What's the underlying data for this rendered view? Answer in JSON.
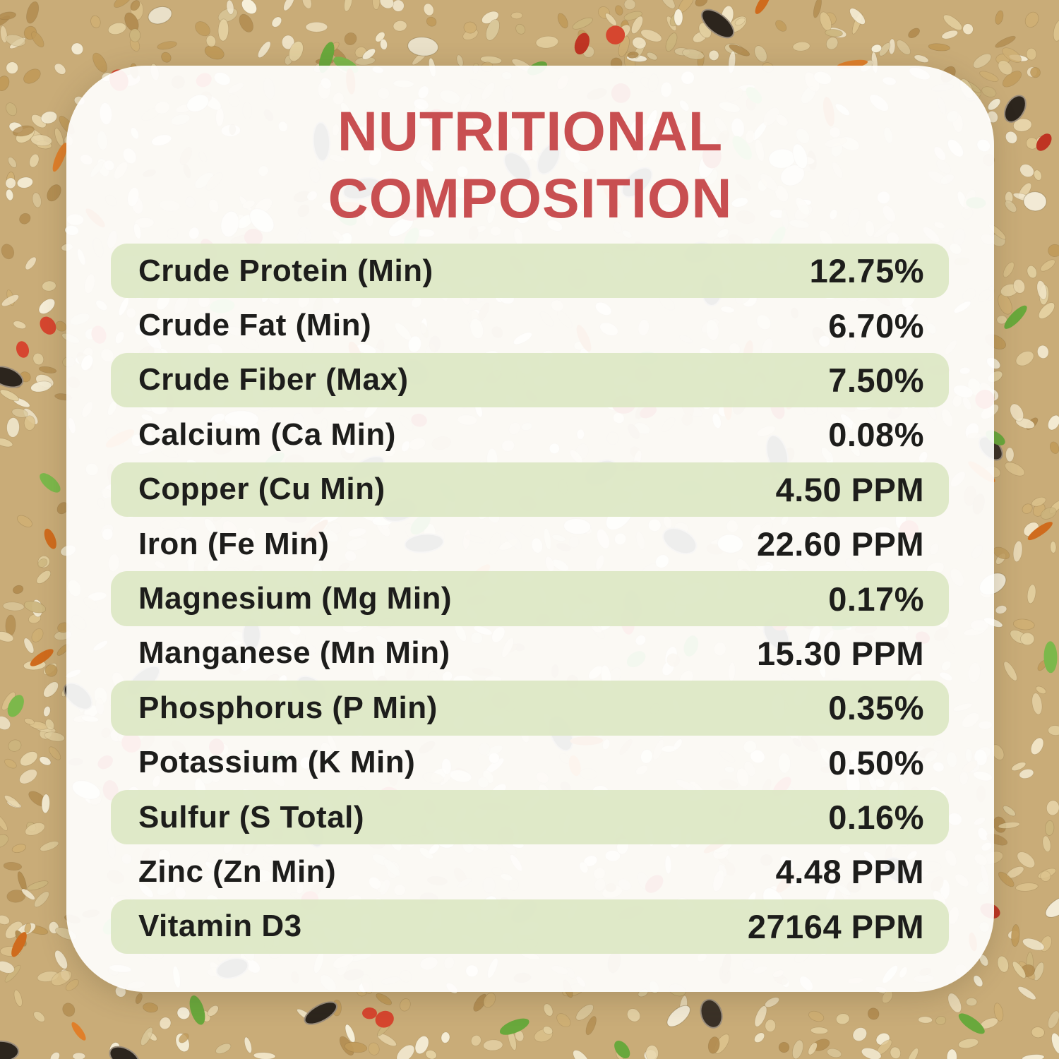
{
  "title": {
    "line1": "NUTRITIONAL",
    "line2": "COMPOSITION"
  },
  "colors": {
    "title_red": "#c84f51",
    "row_highlight_green": "rgba(220,231,195,0.9)",
    "text_dark": "#1d1d1b",
    "card_background": "rgba(255,255,255,0.92)"
  },
  "table": {
    "rows": [
      {
        "label": "Crude Protein (Min)",
        "value": "12.75%"
      },
      {
        "label": "Crude Fat (Min)",
        "value": "6.70%"
      },
      {
        "label": "Crude Fiber (Max)",
        "value": "7.50%"
      },
      {
        "label": "Calcium (Ca Min)",
        "value": "0.08%"
      },
      {
        "label": "Copper (Cu Min)",
        "value": "4.50 PPM"
      },
      {
        "label": "Iron (Fe Min)",
        "value": "22.60 PPM"
      },
      {
        "label": "Magnesium (Mg Min)",
        "value": "0.17%"
      },
      {
        "label": "Manganese (Mn Min)",
        "value": "15.30 PPM"
      },
      {
        "label": "Phosphorus (P Min)",
        "value": "0.35%"
      },
      {
        "label": "Potassium (K Min)",
        "value": "0.50%"
      },
      {
        "label": "Sulfur (S Total)",
        "value": "0.16%"
      },
      {
        "label": "Zinc (Zn Min)",
        "value": "4.48 PPM"
      },
      {
        "label": "Vitamin D3",
        "value": "27164 PPM"
      }
    ]
  }
}
